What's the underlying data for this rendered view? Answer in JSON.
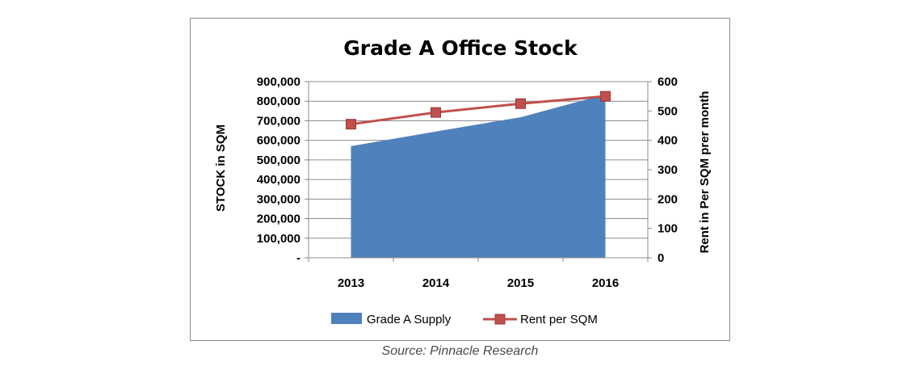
{
  "chart_data": {
    "type": "area",
    "title": "Grade A Office Stock",
    "categories": [
      "2013",
      "2014",
      "2015",
      "2016"
    ],
    "series": [
      {
        "name": "Grade A Supply",
        "type": "area",
        "axis": "left",
        "color": "#4f81bd",
        "values": [
          570000,
          645000,
          718000,
          835000
        ]
      },
      {
        "name": "Rent per SQM",
        "type": "line",
        "axis": "right",
        "color": "#c0504d",
        "values": [
          455,
          495,
          525,
          550
        ]
      }
    ],
    "y_left": {
      "label": "STOCK in SQM",
      "ylim": [
        0,
        900000
      ],
      "ticks": [
        "-",
        "100,000",
        "200,000",
        "300,000",
        "400,000",
        "500,000",
        "600,000",
        "700,000",
        "800,000",
        "900,000"
      ]
    },
    "y_right": {
      "label": "Rent in Per SQM prer month",
      "ylim": [
        0,
        600
      ],
      "ticks": [
        "0",
        "100",
        "200",
        "300",
        "400",
        "500",
        "600"
      ]
    },
    "grid": true,
    "legend": "bottom"
  },
  "source": "Source: Pinnacle Research"
}
